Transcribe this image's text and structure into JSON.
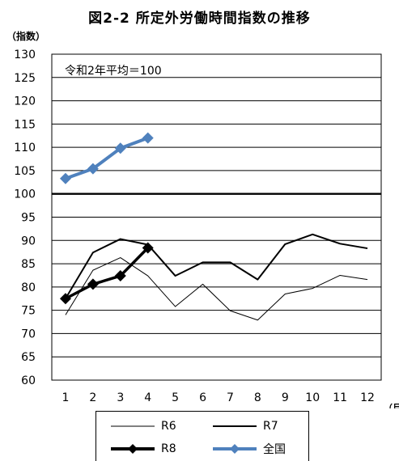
{
  "chart_data": {
    "type": "line",
    "title": "図2-2 所定外労働時間指数の推移",
    "ylabel": "（指数）",
    "xlabel": "（月）",
    "annotation": "令和2年平均＝100",
    "ylim": [
      60,
      130
    ],
    "ytick_step": 5,
    "reference_line": 100,
    "categories": [
      "1",
      "2",
      "3",
      "4",
      "5",
      "6",
      "7",
      "8",
      "9",
      "10",
      "11",
      "12"
    ],
    "series": [
      {
        "name": "R6",
        "color": "#000000",
        "style": "thin",
        "values": [
          74.0,
          83.6,
          86.3,
          82.4,
          75.8,
          80.6,
          74.9,
          72.9,
          78.5,
          79.7,
          82.5,
          81.6
        ]
      },
      {
        "name": "R7",
        "color": "#000000",
        "style": "medium",
        "values": [
          77.5,
          87.4,
          90.3,
          89.1,
          82.4,
          85.3,
          85.3,
          81.6,
          89.2,
          91.3,
          89.3,
          88.3
        ]
      },
      {
        "name": "R8",
        "color": "#000000",
        "style": "bold-markers",
        "values": [
          77.5,
          80.6,
          82.4,
          88.4,
          null,
          null,
          null,
          null,
          null,
          null,
          null,
          null
        ]
      },
      {
        "name": "全国",
        "color": "#4f81bd",
        "style": "blue-markers",
        "values": [
          103.3,
          105.4,
          109.8,
          112.0,
          null,
          null,
          null,
          null,
          null,
          null,
          null,
          null
        ]
      }
    ],
    "grid": true,
    "legend_position": "bottom"
  }
}
